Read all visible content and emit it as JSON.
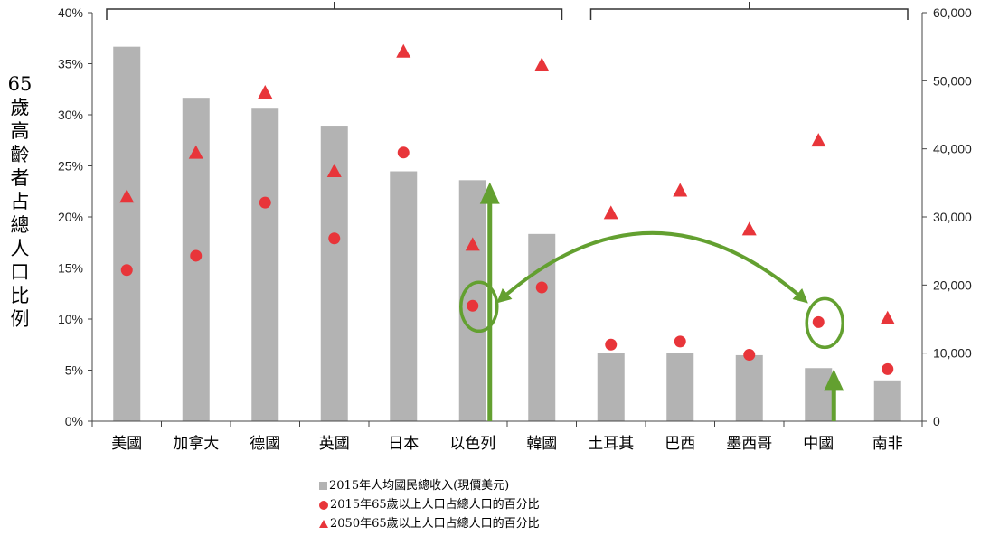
{
  "chart_data": {
    "type": "bar",
    "categories": [
      "美國",
      "加拿大",
      "德國",
      "英國",
      "日本",
      "以色列",
      "韓國",
      "土耳其",
      "巴西",
      "墨西哥",
      "中國",
      "南非"
    ],
    "series": [
      {
        "name": "2015年人均國民總收入(現價美元)",
        "kind": "bar",
        "axis": "right",
        "color": "#b3b3b3",
        "values": [
          55000,
          47500,
          45900,
          43400,
          36700,
          35400,
          27500,
          10000,
          10000,
          9700,
          7800,
          6000
        ]
      },
      {
        "name": "2015年65歲以上人口占總人口的百分比",
        "kind": "marker-circle",
        "axis": "left",
        "color": "#e8353a",
        "values": [
          14.8,
          16.2,
          21.4,
          17.9,
          26.3,
          11.3,
          13.1,
          7.5,
          7.8,
          6.5,
          9.7,
          5.1
        ]
      },
      {
        "name": "2050年65歲以上人口占總人口的百分比",
        "kind": "marker-triangle",
        "axis": "left",
        "color": "#e8353a",
        "values": [
          22.1,
          26.4,
          32.3,
          24.6,
          36.3,
          17.4,
          35.0,
          20.5,
          22.7,
          18.9,
          27.6,
          10.2
        ]
      }
    ],
    "ylabel": "65歲高齡者占總人口比例",
    "ylim": [
      0,
      40
    ],
    "y_ticks": [
      "0%",
      "5%",
      "10%",
      "15%",
      "20%",
      "25%",
      "30%",
      "35%",
      "40%"
    ],
    "y2lim": [
      0,
      60000
    ],
    "y2_ticks": [
      "0",
      "10,000",
      "20,000",
      "30,000",
      "40,000",
      "50,000",
      "60,000"
    ],
    "grid": false,
    "legend_position": "bottom-center",
    "annotations": {
      "group_brackets": [
        [
          0,
          6
        ],
        [
          7,
          11
        ]
      ],
      "circled_points": [
        "以色列",
        "中國"
      ],
      "up_arrows": [
        "以色列",
        "中國"
      ],
      "double_arrow": [
        "以色列",
        "中國"
      ],
      "arrow_color": "#63a030"
    }
  }
}
